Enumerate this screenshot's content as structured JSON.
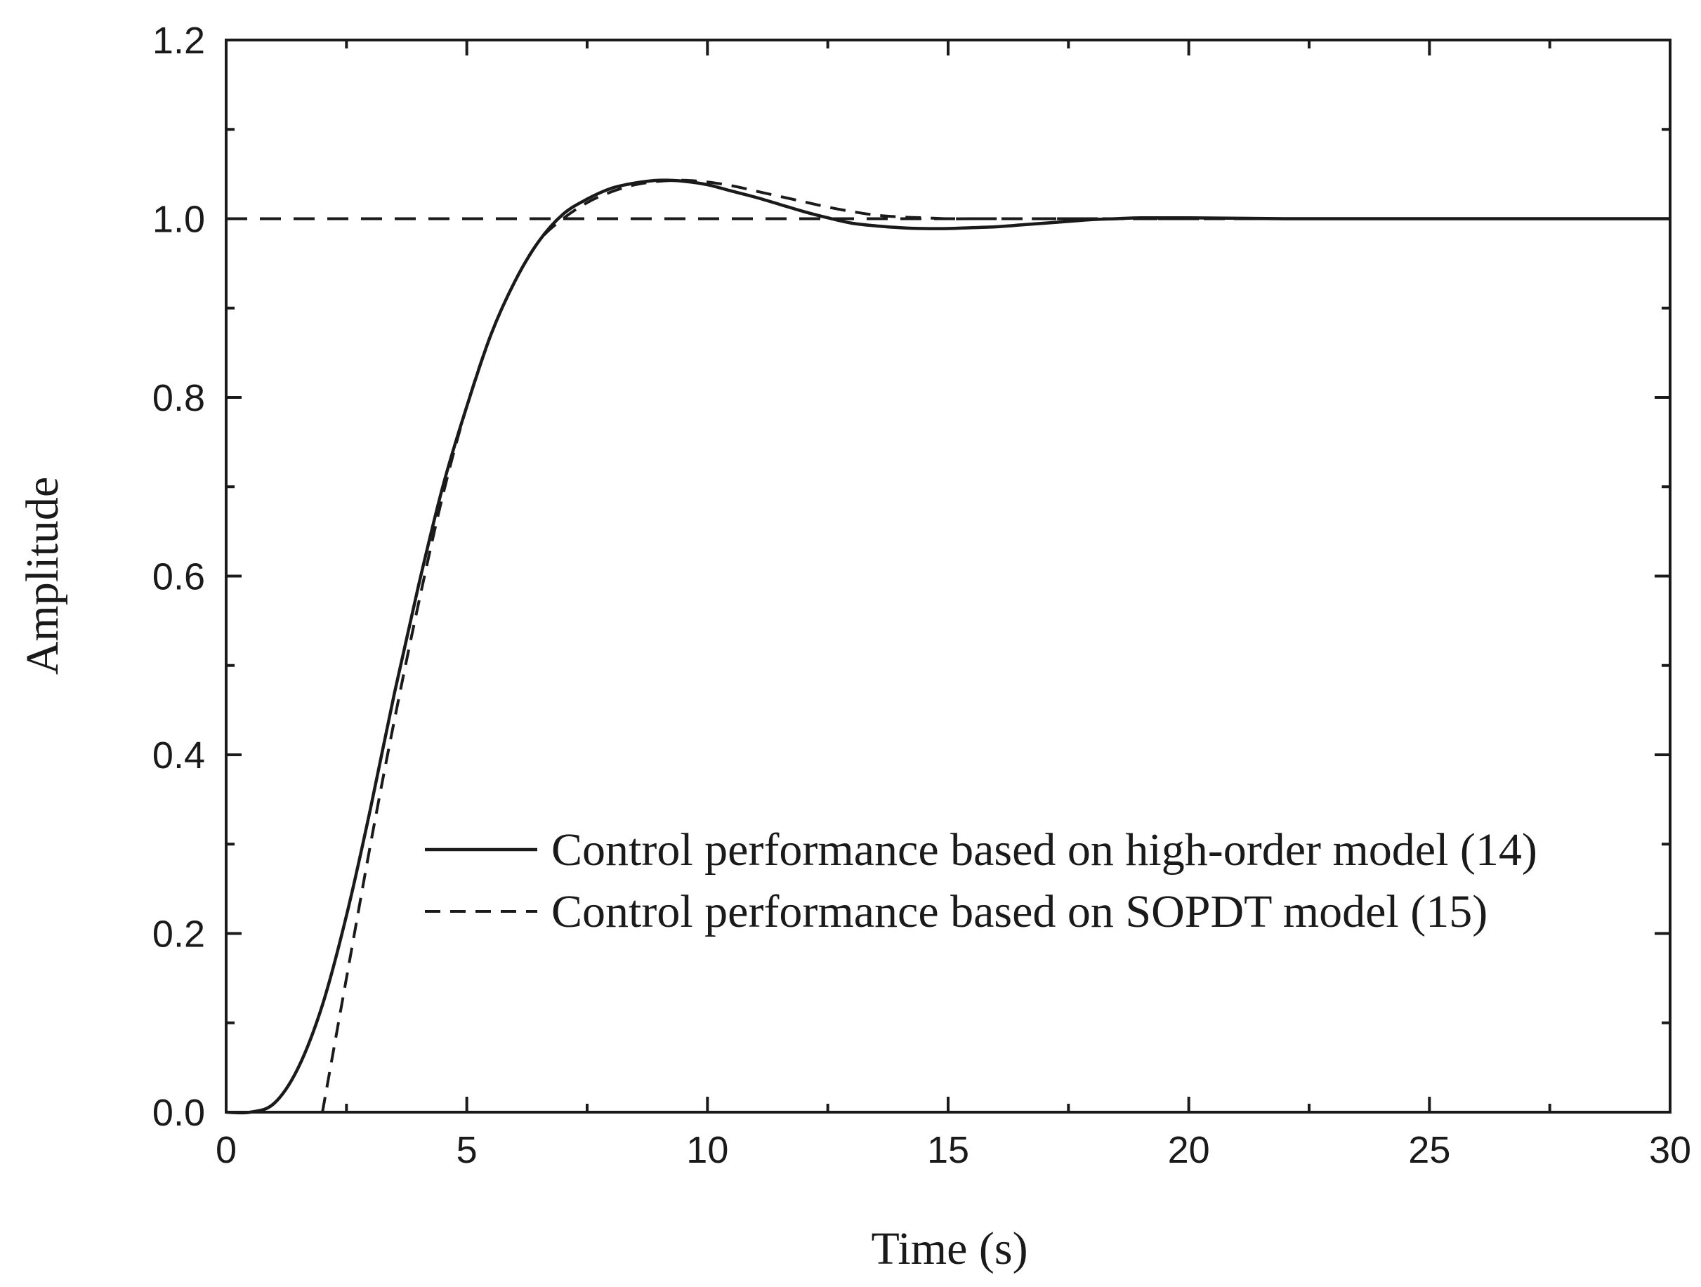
{
  "chart_data": {
    "type": "line",
    "title": "",
    "xlabel": "Time (s)",
    "ylabel": "Amplitude",
    "xlim": [
      0,
      30
    ],
    "ylim": [
      0,
      1.2
    ],
    "x_ticks": [
      "0",
      "5",
      "10",
      "15",
      "20",
      "25",
      "30"
    ],
    "y_ticks": [
      "0.0",
      "0.2",
      "0.4",
      "0.6",
      "0.8",
      "1.0",
      "1.2"
    ],
    "grid": false,
    "legend_position": "center-right",
    "reference_line": {
      "y": 1.0,
      "style": "dashed"
    },
    "series": [
      {
        "name": "Control performance based on high-order model (14)",
        "style": "solid",
        "x": [
          0,
          0.5,
          1.0,
          1.5,
          2.0,
          2.5,
          3.0,
          3.5,
          4.0,
          4.5,
          5.0,
          5.5,
          6.0,
          6.5,
          7.0,
          7.5,
          8.0,
          8.5,
          9.0,
          9.5,
          10.0,
          10.5,
          11.0,
          11.5,
          12.0,
          12.5,
          13.0,
          13.5,
          14.0,
          14.5,
          15.0,
          15.5,
          16.0,
          16.5,
          17.0,
          17.5,
          18.0,
          18.5,
          19.0,
          20.0,
          22.0,
          25.0,
          30.0
        ],
        "y": [
          0,
          0.0,
          0.01,
          0.05,
          0.12,
          0.22,
          0.34,
          0.47,
          0.59,
          0.7,
          0.79,
          0.87,
          0.93,
          0.975,
          1.005,
          1.022,
          1.034,
          1.04,
          1.043,
          1.042,
          1.038,
          1.031,
          1.024,
          1.016,
          1.008,
          1.001,
          0.995,
          0.992,
          0.99,
          0.989,
          0.989,
          0.99,
          0.991,
          0.993,
          0.995,
          0.997,
          0.999,
          1.0,
          1.001,
          1.001,
          1.0,
          1.0,
          1.0
        ]
      },
      {
        "name": "Control performance based on SOPDT model (15)",
        "style": "dashed",
        "x": [
          2.0,
          2.5,
          3.0,
          3.5,
          4.0,
          4.5,
          5.0,
          5.5,
          6.0,
          6.5,
          7.0,
          7.5,
          8.0,
          8.5,
          9.0,
          9.5,
          10.0,
          10.5,
          11.0,
          11.5,
          12.0,
          12.5,
          13.0,
          13.5,
          14.0,
          14.5,
          15.0,
          15.5,
          16.0,
          17.0,
          18.0,
          19.0,
          20.0,
          22.0,
          25.0,
          30.0
        ],
        "y": [
          0.0,
          0.15,
          0.3,
          0.44,
          0.57,
          0.69,
          0.79,
          0.87,
          0.93,
          0.975,
          1.0,
          1.018,
          1.03,
          1.038,
          1.042,
          1.043,
          1.041,
          1.037,
          1.031,
          1.025,
          1.019,
          1.013,
          1.008,
          1.004,
          1.002,
          1.001,
          1.0,
          1.0,
          1.0,
          1.0,
          1.0,
          1.0,
          1.0,
          1.0,
          1.0,
          1.0
        ]
      }
    ]
  }
}
